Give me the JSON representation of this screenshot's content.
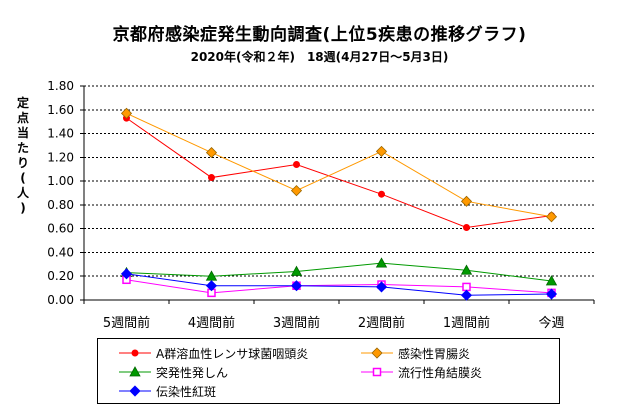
{
  "chart_data": {
    "type": "line",
    "title": "京都府感染症発生動向調査(上位5疾患の推移グラフ)",
    "subtitle": "2020年(令和２年)　18週(4月27日～5月3日)",
    "ylabel": "定点当たり(人)",
    "xlabel": "",
    "categories": [
      "5週間前",
      "4週間前",
      "3週間前",
      "2週間前",
      "1週間前",
      "今週"
    ],
    "yticks": [
      "0.00",
      "0.20",
      "0.40",
      "0.60",
      "0.80",
      "1.00",
      "1.20",
      "1.40",
      "1.60",
      "1.80"
    ],
    "ylim": [
      0,
      1.8
    ],
    "grid": true,
    "legend_position": "bottom",
    "series": [
      {
        "name": "A群溶血性レンサ球菌咽頭炎",
        "values": [
          1.53,
          1.03,
          1.14,
          0.89,
          0.61,
          0.71
        ],
        "color": "#ff0000",
        "marker": "circle"
      },
      {
        "name": "感染性胃腸炎",
        "values": [
          1.57,
          1.24,
          0.92,
          1.25,
          0.83,
          0.7
        ],
        "color": "#ff9900",
        "marker": "diamond"
      },
      {
        "name": "突発性発しん",
        "values": [
          0.23,
          0.2,
          0.24,
          0.31,
          0.25,
          0.16
        ],
        "color": "#009900",
        "marker": "triangle"
      },
      {
        "name": "流行性角結膜炎",
        "values": [
          0.17,
          0.06,
          0.12,
          0.13,
          0.11,
          0.06
        ],
        "color": "#ff00ff",
        "marker": "square"
      },
      {
        "name": "伝染性紅斑",
        "values": [
          0.22,
          0.12,
          0.12,
          0.11,
          0.04,
          0.05
        ],
        "color": "#0000ff",
        "marker": "diamond"
      }
    ]
  }
}
